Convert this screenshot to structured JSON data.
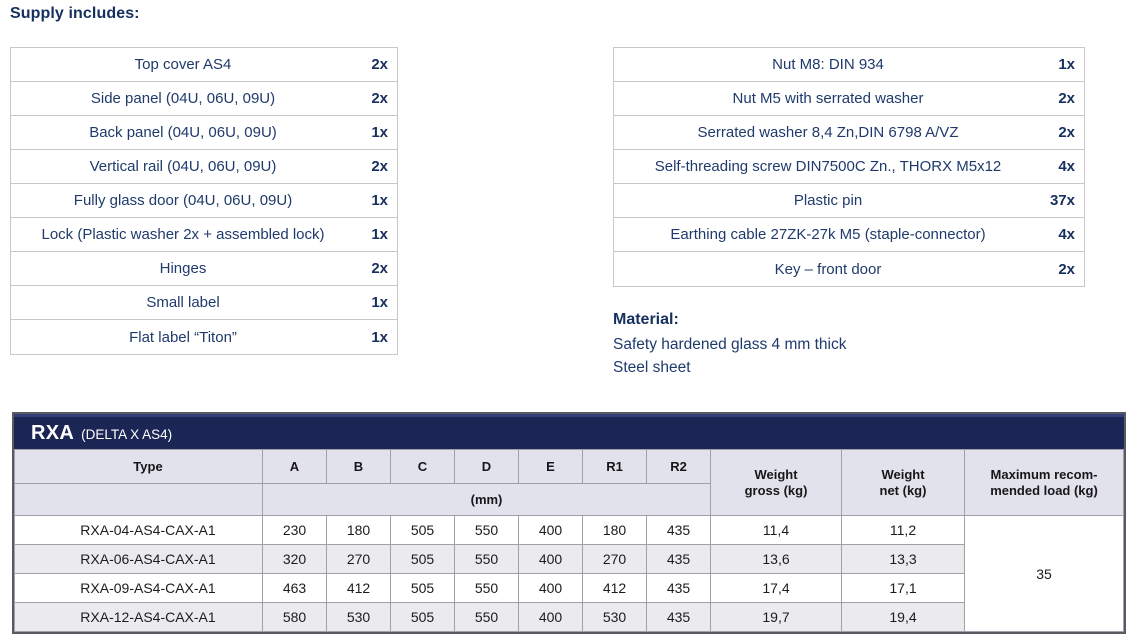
{
  "supply": {
    "heading": "Supply includes:",
    "left_items": [
      {
        "name": "Top cover AS4",
        "qty": "2x"
      },
      {
        "name": "Side panel (04U, 06U, 09U)",
        "qty": "2x"
      },
      {
        "name": "Back panel (04U, 06U, 09U)",
        "qty": "1x"
      },
      {
        "name": "Vertical rail (04U, 06U, 09U)",
        "qty": "2x"
      },
      {
        "name": "Fully glass door (04U, 06U, 09U)",
        "qty": "1x"
      },
      {
        "name": "Lock (Plastic washer 2x + assembled lock)",
        "qty": "1x"
      },
      {
        "name": "Hinges",
        "qty": "2x"
      },
      {
        "name": "Small label",
        "qty": "1x"
      },
      {
        "name": "Flat label “Titon”",
        "qty": "1x"
      }
    ],
    "right_items": [
      {
        "name": "Nut M8: DIN 934",
        "qty": "1x"
      },
      {
        "name": "Nut M5 with serrated washer",
        "qty": "2x"
      },
      {
        "name": "Serrated washer 8,4 Zn,DIN 6798 A/VZ",
        "qty": "2x"
      },
      {
        "name": "Self-threading screw DIN7500C Zn., THORX M5x12",
        "qty": "4x"
      },
      {
        "name": "Plastic pin",
        "qty": "37x"
      },
      {
        "name": "Earthing cable 27ZK-27k M5 (staple-connector)",
        "qty": "4x"
      },
      {
        "name": "Key – front door",
        "qty": "2x"
      }
    ]
  },
  "material": {
    "heading": "Material:",
    "lines": [
      "Safety hardened glass 4 mm thick",
      "Steel sheet"
    ]
  },
  "spec": {
    "title": "RXA",
    "subtitle": "(DELTA X AS4)",
    "type_header": "Type",
    "dim_columns": [
      "A",
      "B",
      "C",
      "D",
      "E",
      "R1",
      "R2"
    ],
    "unit_label": "(mm)",
    "weight_gross_header": "Weight\ngross (kg)",
    "weight_net_header": "Weight\nnet (kg)",
    "max_load_header": "Maximum recom-\nmended load (kg)",
    "rows": [
      {
        "type": "RXA-04-AS4-CAX-A1",
        "dims": [
          "230",
          "180",
          "505",
          "550",
          "400",
          "180",
          "435"
        ],
        "weight_gross": "11,4",
        "weight_net": "11,2"
      },
      {
        "type": "RXA-06-AS4-CAX-A1",
        "dims": [
          "320",
          "270",
          "505",
          "550",
          "400",
          "270",
          "435"
        ],
        "weight_gross": "13,6",
        "weight_net": "13,3"
      },
      {
        "type": "RXA-09-AS4-CAX-A1",
        "dims": [
          "463",
          "412",
          "505",
          "550",
          "400",
          "412",
          "435"
        ],
        "weight_gross": "17,4",
        "weight_net": "17,1"
      },
      {
        "type": "RXA-12-AS4-CAX-A1",
        "dims": [
          "580",
          "530",
          "505",
          "550",
          "400",
          "530",
          "435"
        ],
        "weight_gross": "19,7",
        "weight_net": "19,4"
      }
    ],
    "max_load_value": "35"
  },
  "colors": {
    "navy_text": "#1f3a6b",
    "header_bar": "#1c2654",
    "header_cell_bg": "#e2e2ec",
    "stripe": "#ebebee"
  }
}
